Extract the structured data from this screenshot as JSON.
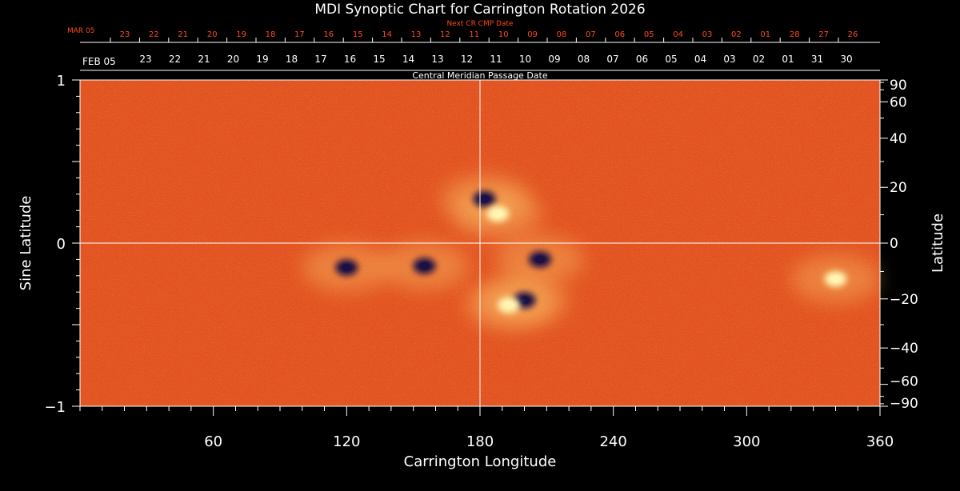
{
  "title": "MDI Synoptic Chart for Carrington Rotation 2026",
  "colors": {
    "background": "#000000",
    "text": "#ffffff",
    "accent": "#ff4a1a",
    "map_base": "#e8501a",
    "positive": "#fff4b0",
    "negative": "#1a1044",
    "grid": "#ffffff"
  },
  "top_axes": {
    "next_cr_label": "Next CR CMP Date",
    "next_cr_start": "MAR 05",
    "next_cr_ticks": [
      "23",
      "22",
      "21",
      "20",
      "19",
      "18",
      "17",
      "16",
      "15",
      "14",
      "13",
      "12",
      "11",
      "10",
      "09",
      "08",
      "07",
      "06",
      "05",
      "04",
      "03",
      "02",
      "01",
      "28",
      "27",
      "26"
    ],
    "cmp_label": "Central Meridian Passage Date",
    "cmp_start": "FEB 05",
    "cmp_ticks": [
      "23",
      "22",
      "21",
      "20",
      "19",
      "18",
      "17",
      "16",
      "15",
      "14",
      "13",
      "12",
      "11",
      "10",
      "09",
      "08",
      "07",
      "06",
      "05",
      "04",
      "03",
      "02",
      "01",
      "31",
      "30"
    ]
  },
  "chart_data": {
    "type": "heatmap",
    "title": "MDI Synoptic Chart for Carrington Rotation 2026",
    "xlabel": "Carrington Longitude",
    "ylabel_left": "Sine Latitude",
    "ylabel_right": "Latitude",
    "xlim": [
      0,
      360
    ],
    "ylim": [
      -1,
      1
    ],
    "x_ticks": [
      60,
      120,
      180,
      240,
      300,
      360
    ],
    "x_tick_labels": [
      "60",
      "120",
      "180",
      "240",
      "300",
      "360"
    ],
    "y_left_ticks": [
      -1,
      0,
      1
    ],
    "y_left_tick_labels": [
      "−1",
      "0",
      "1"
    ],
    "y_right_ticks": [
      90,
      60,
      40,
      20,
      0,
      -20,
      -40,
      -60,
      -90
    ],
    "y_right_tick_labels": [
      "90",
      "60",
      "40",
      "20",
      "0",
      "−20",
      "−40",
      "−60",
      "−90"
    ],
    "equator_line": 0,
    "central_meridian_line": 180,
    "active_regions": [
      {
        "lon": 182,
        "sinlat": 0.27,
        "polarity": "negative"
      },
      {
        "lon": 188,
        "sinlat": 0.18,
        "polarity": "positive"
      },
      {
        "lon": 120,
        "sinlat": -0.15,
        "polarity": "negative"
      },
      {
        "lon": 155,
        "sinlat": -0.14,
        "polarity": "negative"
      },
      {
        "lon": 207,
        "sinlat": -0.1,
        "polarity": "negative"
      },
      {
        "lon": 200,
        "sinlat": -0.35,
        "polarity": "negative"
      },
      {
        "lon": 193,
        "sinlat": -0.38,
        "polarity": "positive"
      },
      {
        "lon": 340,
        "sinlat": -0.22,
        "polarity": "positive"
      }
    ]
  }
}
